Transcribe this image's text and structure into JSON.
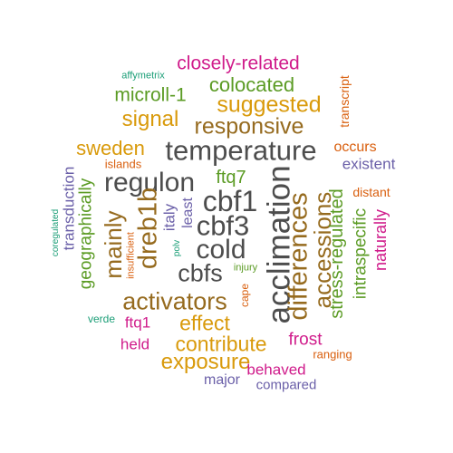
{
  "palette": {
    "dark_gray": "#4d4d4d",
    "brown": "#966b1f",
    "gold": "#d99a0b",
    "green": "#5b9b24",
    "magenta": "#d01c8b",
    "orange": "#d95f0e",
    "purple": "#6a5fa8",
    "teal": "#1b9e77"
  },
  "words": [
    {
      "text": "closely-related"
    },
    {
      "text": "affymetrix"
    },
    {
      "text": "transcript"
    },
    {
      "text": "microll-1"
    },
    {
      "text": "colocated"
    },
    {
      "text": "suggested"
    },
    {
      "text": "signal"
    },
    {
      "text": "responsive"
    },
    {
      "text": "sweden"
    },
    {
      "text": "temperature"
    },
    {
      "text": "occurs"
    },
    {
      "text": "islands"
    },
    {
      "text": "existent"
    },
    {
      "text": "regulon"
    },
    {
      "text": "ftq7"
    },
    {
      "text": "dreb1b"
    },
    {
      "text": "cbf1"
    },
    {
      "text": "cbf3"
    },
    {
      "text": "cold"
    },
    {
      "text": "cbfs"
    },
    {
      "text": "acclimation"
    },
    {
      "text": "differences"
    },
    {
      "text": "accessions"
    },
    {
      "text": "stress-regulated"
    },
    {
      "text": "intraspecific"
    },
    {
      "text": "distant"
    },
    {
      "text": "naturally"
    },
    {
      "text": "geographically"
    },
    {
      "text": "transduction"
    },
    {
      "text": "coregulated"
    },
    {
      "text": "mainly"
    },
    {
      "text": "insufficient"
    },
    {
      "text": "italy"
    },
    {
      "text": "least"
    },
    {
      "text": "polv"
    },
    {
      "text": "injury"
    },
    {
      "text": "cape"
    },
    {
      "text": "activators"
    },
    {
      "text": "verde"
    },
    {
      "text": "ftq1"
    },
    {
      "text": "effect"
    },
    {
      "text": "contribute"
    },
    {
      "text": "frost"
    },
    {
      "text": "held"
    },
    {
      "text": "ranging"
    },
    {
      "text": "exposure"
    },
    {
      "text": "behaved"
    },
    {
      "text": "major"
    },
    {
      "text": "compared"
    }
  ]
}
